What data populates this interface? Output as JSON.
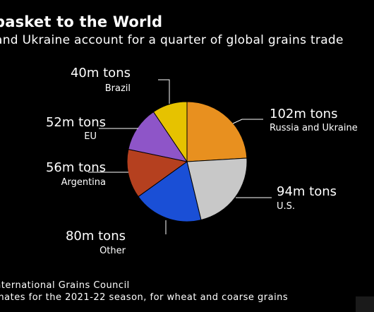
{
  "title": "basket to the World",
  "subtitle": "and Ukraine account for a quarter of global grains trade",
  "source": "nternational Grains Council",
  "note": "mates for the 2021-22 season, for wheat and coarse grains",
  "chart_data": {
    "type": "pie",
    "unit": "m tons",
    "slices": [
      {
        "name": "Russia and Ukraine",
        "value": 102,
        "label": "102m tons",
        "color": "#e8901f"
      },
      {
        "name": "U.S.",
        "value": 94,
        "label": "94m tons",
        "color": "#c8c8c8"
      },
      {
        "name": "Other",
        "value": 80,
        "label": "80m tons",
        "color": "#1a4fd6"
      },
      {
        "name": "Argentina",
        "value": 56,
        "label": "56m tons",
        "color": "#b5401f"
      },
      {
        "name": "EU",
        "value": 52,
        "label": "52m tons",
        "color": "#8e55c8"
      },
      {
        "name": "Brazil",
        "value": 40,
        "label": "40m tons",
        "color": "#e6c200"
      }
    ]
  }
}
